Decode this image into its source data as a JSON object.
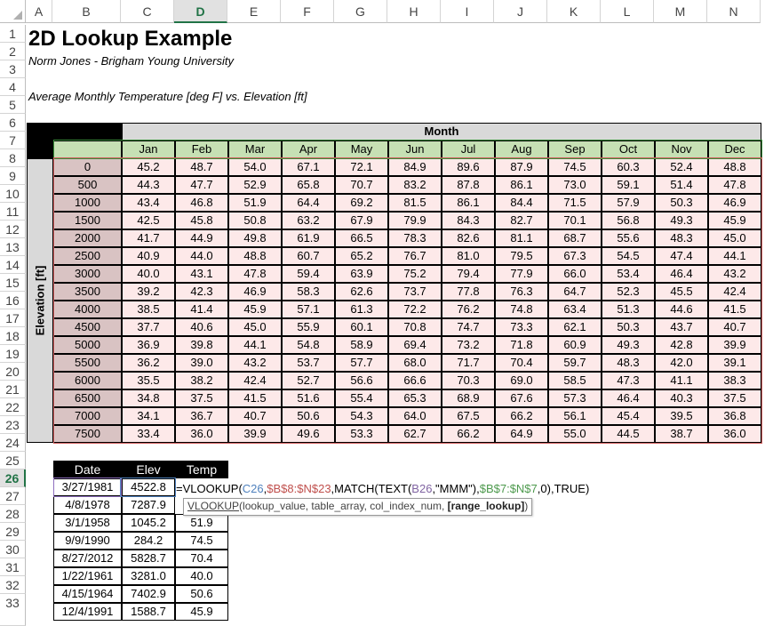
{
  "columns": [
    "A",
    "B",
    "C",
    "D",
    "E",
    "F",
    "G",
    "H",
    "I",
    "J",
    "K",
    "L",
    "M",
    "N"
  ],
  "active_column": "D",
  "rows": [
    "1",
    "2",
    "3",
    "4",
    "5",
    "6",
    "7",
    "8",
    "9",
    "10",
    "11",
    "12",
    "13",
    "14",
    "15",
    "16",
    "17",
    "18",
    "19",
    "20",
    "21",
    "22",
    "23",
    "24",
    "25",
    "26",
    "27",
    "28",
    "29",
    "30",
    "31",
    "32",
    "33"
  ],
  "active_row": "26",
  "title": "2D Lookup Example",
  "subtitle": "Norm Jones - Brigham Young University",
  "caption": "Average Monthly Temperature [deg F] vs. Elevation [ft]",
  "month_header": "Month",
  "elevation_label": "Elevation [ft]",
  "months": [
    "Jan",
    "Feb",
    "Mar",
    "Apr",
    "May",
    "Jun",
    "Jul",
    "Aug",
    "Sep",
    "Oct",
    "Nov",
    "Dec"
  ],
  "elevations": [
    "0",
    "500",
    "1000",
    "1500",
    "2000",
    "2500",
    "3000",
    "3500",
    "4000",
    "4500",
    "5000",
    "5500",
    "6000",
    "6500",
    "7000",
    "7500"
  ],
  "temps": [
    [
      "45.2",
      "48.7",
      "54.0",
      "67.1",
      "72.1",
      "84.9",
      "89.6",
      "87.9",
      "74.5",
      "60.3",
      "52.4",
      "48.8"
    ],
    [
      "44.3",
      "47.7",
      "52.9",
      "65.8",
      "70.7",
      "83.2",
      "87.8",
      "86.1",
      "73.0",
      "59.1",
      "51.4",
      "47.8"
    ],
    [
      "43.4",
      "46.8",
      "51.9",
      "64.4",
      "69.2",
      "81.5",
      "86.1",
      "84.4",
      "71.5",
      "57.9",
      "50.3",
      "46.9"
    ],
    [
      "42.5",
      "45.8",
      "50.8",
      "63.2",
      "67.9",
      "79.9",
      "84.3",
      "82.7",
      "70.1",
      "56.8",
      "49.3",
      "45.9"
    ],
    [
      "41.7",
      "44.9",
      "49.8",
      "61.9",
      "66.5",
      "78.3",
      "82.6",
      "81.1",
      "68.7",
      "55.6",
      "48.3",
      "45.0"
    ],
    [
      "40.9",
      "44.0",
      "48.8",
      "60.7",
      "65.2",
      "76.7",
      "81.0",
      "79.5",
      "67.3",
      "54.5",
      "47.4",
      "44.1"
    ],
    [
      "40.0",
      "43.1",
      "47.8",
      "59.4",
      "63.9",
      "75.2",
      "79.4",
      "77.9",
      "66.0",
      "53.4",
      "46.4",
      "43.2"
    ],
    [
      "39.2",
      "42.3",
      "46.9",
      "58.3",
      "62.6",
      "73.7",
      "77.8",
      "76.3",
      "64.7",
      "52.3",
      "45.5",
      "42.4"
    ],
    [
      "38.5",
      "41.4",
      "45.9",
      "57.1",
      "61.3",
      "72.2",
      "76.2",
      "74.8",
      "63.4",
      "51.3",
      "44.6",
      "41.5"
    ],
    [
      "37.7",
      "40.6",
      "45.0",
      "55.9",
      "60.1",
      "70.8",
      "74.7",
      "73.3",
      "62.1",
      "50.3",
      "43.7",
      "40.7"
    ],
    [
      "36.9",
      "39.8",
      "44.1",
      "54.8",
      "58.9",
      "69.4",
      "73.2",
      "71.8",
      "60.9",
      "49.3",
      "42.8",
      "39.9"
    ],
    [
      "36.2",
      "39.0",
      "43.2",
      "53.7",
      "57.7",
      "68.0",
      "71.7",
      "70.4",
      "59.7",
      "48.3",
      "42.0",
      "39.1"
    ],
    [
      "35.5",
      "38.2",
      "42.4",
      "52.7",
      "56.6",
      "66.6",
      "70.3",
      "69.0",
      "58.5",
      "47.3",
      "41.1",
      "38.3"
    ],
    [
      "34.8",
      "37.5",
      "41.5",
      "51.6",
      "55.4",
      "65.3",
      "68.9",
      "67.6",
      "57.3",
      "46.4",
      "40.3",
      "37.5"
    ],
    [
      "34.1",
      "36.7",
      "40.7",
      "50.6",
      "54.3",
      "64.0",
      "67.5",
      "66.2",
      "56.1",
      "45.4",
      "39.5",
      "36.8"
    ],
    [
      "33.4",
      "36.0",
      "39.9",
      "49.6",
      "53.3",
      "62.7",
      "66.2",
      "64.9",
      "55.0",
      "44.5",
      "38.7",
      "36.0"
    ]
  ],
  "lookup_table": {
    "headers": [
      "Date",
      "Elev",
      "Temp"
    ],
    "rows": [
      [
        "3/27/1981",
        "4522.8",
        ""
      ],
      [
        "4/8/1978",
        "7287.9",
        ""
      ],
      [
        "3/1/1958",
        "1045.2",
        "51.9"
      ],
      [
        "9/9/1990",
        "284.2",
        "74.5"
      ],
      [
        "8/27/2012",
        "5828.7",
        "70.4"
      ],
      [
        "1/22/1961",
        "3281.0",
        "40.0"
      ],
      [
        "4/15/1964",
        "7402.9",
        "50.6"
      ],
      [
        "12/4/1991",
        "1588.7",
        "45.9"
      ]
    ]
  },
  "formula": {
    "p1": "=VLOOKUP(",
    "p2": "C26",
    "p3": ",",
    "p4": "$B$8:$N$23",
    "p5": ",MATCH(TEXT(",
    "p6": "B26",
    "p7": ",\"MMM\"),",
    "p8": "$B$7:$N$7",
    "p9": ",0),TRUE)"
  },
  "tooltip": {
    "fn": "VLOOKUP",
    "args": "(lookup_value, table_array, col_index_num, ",
    "bold_arg": "[range_lookup]",
    "close": ")"
  },
  "colors": {
    "month_header_bg": "#d9d9d9",
    "month_cell_bg": "#c6e0b4",
    "elev_cell_bg": "#d9c3c3",
    "data_cell_bg": "#fde9e9",
    "ref_blue": "#4f81bd",
    "ref_red": "#c0504d",
    "ref_purple": "#8064a2",
    "ref_green": "#4e9a4e",
    "active_accent": "#217346"
  }
}
